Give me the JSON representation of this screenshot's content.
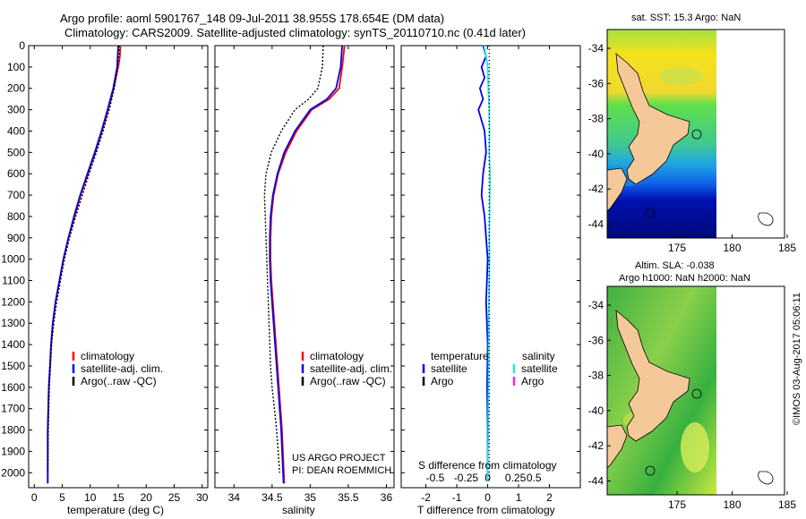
{
  "figure": {
    "title_line1": "Argo profile: aoml 5901767_148 09-Jul-2011 38.955S 178.654E (DM data)",
    "title_line2": "Climatology: CARS2009. Satellite-adjusted climatology: synTS_20110710.nc (0.41d later)",
    "stamp": "©IMOS 03-Aug-2017 05:06:11"
  },
  "colors": {
    "climatology": "#ff0000",
    "satellite": "#0000ee",
    "argo": "#000000",
    "sal_sat": "#22e5e5",
    "sal_argo": "#e030e0"
  },
  "chart_data": [
    {
      "id": "temperature",
      "type": "line",
      "xlabel": "temperature (deg C)",
      "ylabel": "",
      "xlim": [
        -1,
        31
      ],
      "ylim": [
        2070,
        0
      ],
      "xticks": [
        0,
        5,
        10,
        15,
        20,
        25,
        30
      ],
      "yticks": [
        0,
        100,
        200,
        300,
        400,
        500,
        600,
        700,
        800,
        900,
        1000,
        1100,
        1200,
        1300,
        1400,
        1500,
        1600,
        1700,
        1800,
        1900,
        2000
      ],
      "legend": [
        "climatology",
        "satellite-adj. clim.",
        "Argo(..raw -QC)"
      ],
      "series": [
        {
          "name": "climatology",
          "color": "#ff0000",
          "dash": "",
          "x": [
            15.4,
            15.3,
            15.0,
            14.2,
            13.2,
            12.1,
            10.9,
            9.6,
            8.3,
            7.2,
            6.1,
            5.2,
            4.5,
            3.8,
            3.3,
            3.0,
            2.8,
            2.6,
            2.5,
            2.4,
            2.4
          ],
          "y": [
            0,
            50,
            100,
            200,
            300,
            400,
            500,
            600,
            700,
            800,
            900,
            1000,
            1100,
            1200,
            1300,
            1400,
            1500,
            1600,
            1700,
            1800,
            2050
          ]
        },
        {
          "name": "satellite-adj. clim.",
          "color": "#0000ee",
          "dash": "",
          "x": [
            15.0,
            14.9,
            14.8,
            14.1,
            13.1,
            12.0,
            10.8,
            9.5,
            8.2,
            7.1,
            6.1,
            5.2,
            4.5,
            3.8,
            3.3,
            3.0,
            2.8,
            2.6,
            2.5,
            2.4,
            2.4
          ],
          "y": [
            0,
            50,
            100,
            200,
            300,
            400,
            500,
            600,
            700,
            800,
            900,
            1000,
            1100,
            1200,
            1300,
            1400,
            1500,
            1600,
            1700,
            1800,
            2050
          ]
        },
        {
          "name": "Argo(..raw -QC)",
          "color": "#000000",
          "dash": "2,2",
          "x": [
            15.2,
            15.1,
            14.9,
            14.3,
            13.4,
            12.3,
            11.1,
            9.8,
            8.6,
            7.4,
            6.3,
            5.4,
            4.7,
            4.0,
            3.5,
            3.1,
            2.9,
            2.7,
            2.6,
            2.5,
            2.4
          ],
          "y": [
            0,
            50,
            100,
            200,
            300,
            400,
            500,
            600,
            700,
            800,
            900,
            1000,
            1100,
            1200,
            1300,
            1400,
            1500,
            1600,
            1700,
            1800,
            2000
          ]
        }
      ]
    },
    {
      "id": "salinity",
      "type": "line",
      "xlabel": "salinity",
      "ylabel": "",
      "xlim": [
        33.75,
        36.1
      ],
      "ylim": [
        2070,
        0
      ],
      "xticks": [
        34,
        34.5,
        35,
        35.5,
        36
      ],
      "legend": [
        "climatology",
        "satellite-adj. clim.",
        "Argo(..raw -QC)"
      ],
      "annotation": [
        "US ARGO PROJECT",
        "PI: DEAN ROEMMICH"
      ],
      "series": [
        {
          "name": "climatology",
          "color": "#ff0000",
          "dash": "",
          "x": [
            35.45,
            35.42,
            35.38,
            35.25,
            35.02,
            34.82,
            34.68,
            34.58,
            34.52,
            34.49,
            34.48,
            34.48,
            34.49,
            34.51,
            34.53,
            34.55,
            34.57,
            34.59,
            34.61,
            34.63,
            34.66
          ],
          "y": [
            0,
            100,
            200,
            250,
            300,
            400,
            500,
            600,
            700,
            800,
            900,
            1000,
            1100,
            1200,
            1300,
            1400,
            1500,
            1600,
            1700,
            1800,
            2050
          ]
        },
        {
          "name": "satellite-adj. clim.",
          "color": "#0000ee",
          "dash": "",
          "x": [
            35.42,
            35.4,
            35.34,
            35.22,
            35.0,
            34.8,
            34.66,
            34.57,
            34.51,
            34.48,
            34.47,
            34.47,
            34.48,
            34.5,
            34.52,
            34.54,
            34.56,
            34.58,
            34.6,
            34.62,
            34.65
          ],
          "y": [
            0,
            100,
            200,
            250,
            300,
            400,
            500,
            600,
            700,
            800,
            900,
            1000,
            1100,
            1200,
            1300,
            1400,
            1500,
            1600,
            1700,
            1800,
            2050
          ]
        },
        {
          "name": "Argo(..raw -QC)",
          "color": "#000000",
          "dash": "2,2",
          "x": [
            35.17,
            35.16,
            35.1,
            34.98,
            34.8,
            34.62,
            34.49,
            34.42,
            34.4,
            34.41,
            34.42,
            34.43,
            34.44,
            34.45,
            34.46,
            34.47,
            34.48,
            34.5,
            34.53,
            34.56,
            34.6
          ],
          "y": [
            0,
            100,
            200,
            250,
            300,
            400,
            500,
            600,
            700,
            800,
            900,
            1000,
            1100,
            1200,
            1300,
            1400,
            1500,
            1600,
            1700,
            1800,
            2000
          ]
        }
      ]
    },
    {
      "id": "difference",
      "type": "line",
      "xlabel": "T difference from climatology",
      "xlabel_top": "S difference from climatology",
      "xlim": [
        -2.8,
        3.0
      ],
      "ylim": [
        2070,
        0
      ],
      "xticks": [
        -2,
        -1,
        0,
        1,
        2
      ],
      "xticks_s_labels": [
        "-0.5",
        "-0.25",
        "0",
        "0.25",
        "0.5"
      ],
      "legend": {
        "temperature": [
          "satellite",
          "Argo"
        ],
        "salinity": [
          "satellite",
          "Argo"
        ],
        "heading_t": "temperature",
        "heading_s": "salinity"
      },
      "series": [
        {
          "name": "T satellite",
          "color": "#0000ee",
          "dash": "",
          "x": [
            -0.15,
            -0.05,
            -0.2,
            -0.1,
            -0.25,
            -0.15,
            -0.3,
            -0.2,
            -0.1,
            -0.05,
            -0.15,
            -0.2,
            -0.1,
            -0.05,
            0,
            -0.05,
            0,
            -0.02,
            0,
            0,
            0
          ],
          "y": [
            0,
            50,
            100,
            150,
            200,
            250,
            300,
            350,
            400,
            500,
            600,
            700,
            800,
            900,
            1000,
            1200,
            1400,
            1600,
            1800,
            1900,
            2040
          ]
        },
        {
          "name": "S satellite",
          "color": "#22e5e5",
          "dash": "",
          "x": [
            -0.12,
            -0.05,
            0,
            0.02,
            0.05,
            0.06,
            0.05,
            0.08,
            0.07,
            0.06,
            0.05,
            0.06,
            0.05,
            0.04,
            0.03,
            0.03,
            0.02,
            0.02,
            0.01,
            0.0
          ],
          "y": [
            0,
            50,
            100,
            200,
            300,
            400,
            500,
            600,
            700,
            800,
            900,
            1000,
            1100,
            1200,
            1300,
            1500,
            1700,
            1800,
            1900,
            2040
          ]
        },
        {
          "name": "zero",
          "color": "#000000",
          "dash": "1,3",
          "x": [
            0.05,
            0.05
          ],
          "y": [
            0,
            2040
          ]
        }
      ]
    }
  ],
  "maps": {
    "sst": {
      "title": "sat. SST: 15.3 Argo: NaN"
    },
    "sla": {
      "title_line1": "Altim. SLA: -0.038",
      "title_line2": "Argo h1000: NaN h2000: NaN"
    },
    "lat_labels": [
      "-34",
      "-36",
      "-38",
      "-40",
      "-42",
      "-44"
    ],
    "lon_labels": [
      "175",
      "180",
      "185"
    ]
  }
}
